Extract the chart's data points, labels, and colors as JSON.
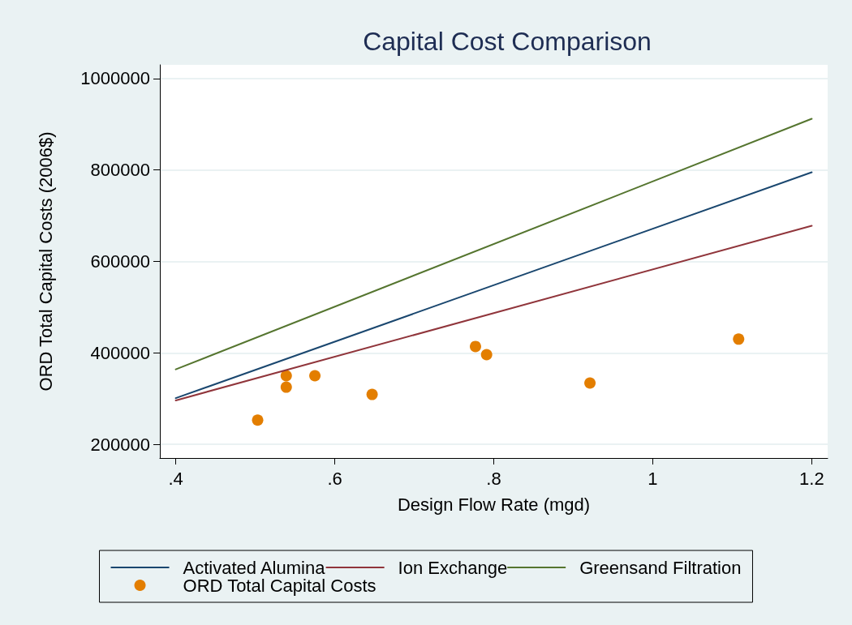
{
  "chart_data": {
    "type": "line",
    "title": "Capital Cost Comparison",
    "xlabel": "Design Flow Rate (mgd)",
    "ylabel": "ORD Total Capital Costs (2006$)",
    "series": [
      {
        "name": "Activated Alumina",
        "color": "#1a476f",
        "x": [
          0.4,
          1.2
        ],
        "values": [
          301000,
          795000
        ]
      },
      {
        "name": "Ion Exchange",
        "color": "#90353b",
        "x": [
          0.4,
          1.2
        ],
        "values": [
          296000,
          678000
        ]
      },
      {
        "name": "Greensand Filtration",
        "color": "#55752f",
        "x": [
          0.4,
          1.2
        ],
        "values": [
          364000,
          912000
        ]
      },
      {
        "name": "ORD Total Capital Costs",
        "color": "#e37e00",
        "type": "scatter",
        "marker": "circle",
        "x": [
          0.503,
          0.539,
          0.539,
          0.575,
          0.647,
          0.777,
          0.791,
          0.921,
          1.108
        ],
        "values": [
          253000,
          350000,
          325000,
          350000,
          309000,
          414000,
          396000,
          334000,
          430000
        ]
      }
    ],
    "xlim": [
      0.38,
      1.22
    ],
    "xticks": [
      {
        "value": 0.4,
        "label": ".4"
      },
      {
        "value": 0.6,
        "label": ".6"
      },
      {
        "value": 0.8,
        "label": ".8"
      },
      1,
      1.2
    ],
    "ylim": [
      170000,
      1030000
    ],
    "yticks": [
      200000,
      400000,
      600000,
      800000,
      1000000
    ],
    "grid": "y",
    "legend": "bottom"
  }
}
